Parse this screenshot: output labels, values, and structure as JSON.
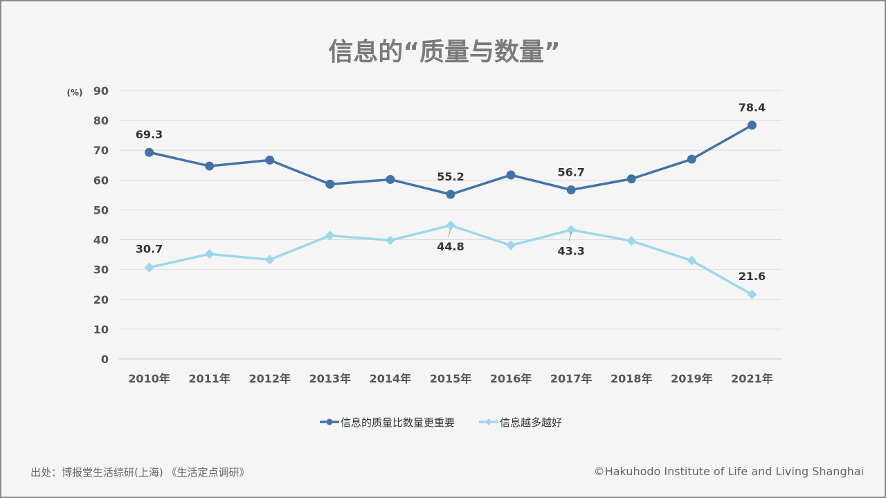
{
  "title": "信息的“质量与数量”",
  "footer": {
    "source": "出处：博报堂生活综研(上海) 《生活定点调研》",
    "copyright": "©Hakuhodo Institute of Life and Living Shanghai"
  },
  "chart_data": {
    "type": "line",
    "title": "信息的“质量与数量”",
    "unit_label": "(%)",
    "ylim": [
      0,
      90
    ],
    "yticks": [
      0,
      10,
      20,
      30,
      40,
      50,
      60,
      70,
      80,
      90
    ],
    "grid": true,
    "legend_position": "bottom",
    "categories": [
      "2010年",
      "2011年",
      "2012年",
      "2013年",
      "2014年",
      "2015年",
      "2016年",
      "2017年",
      "2018年",
      "2019年",
      "2021年"
    ],
    "series": [
      {
        "name": "信息的质量比数量更重要",
        "marker": "circle",
        "color": "#4472a8",
        "values": [
          69.3,
          64.7,
          66.7,
          58.6,
          60.2,
          55.2,
          61.7,
          56.7,
          60.4,
          67.0,
          78.4
        ],
        "labeled": [
          0,
          5,
          7,
          10
        ]
      },
      {
        "name": "信息越多越好",
        "marker": "diamond",
        "color": "#9dd8ea",
        "values": [
          30.7,
          35.2,
          33.3,
          41.4,
          39.8,
          44.8,
          38.1,
          43.3,
          39.6,
          33.0,
          21.6
        ],
        "labeled": [
          0,
          5,
          7,
          10
        ]
      }
    ]
  }
}
